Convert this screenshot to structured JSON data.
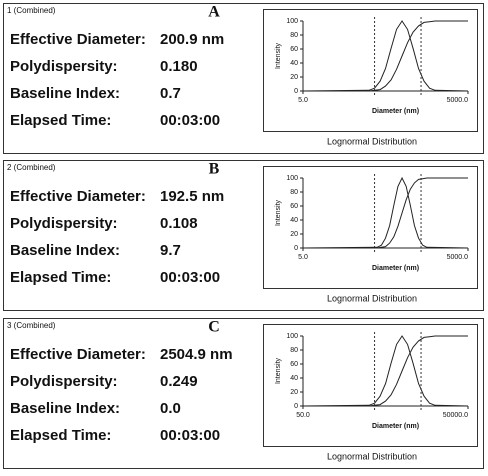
{
  "panels": [
    {
      "header": "1 (Combined)",
      "letter": "A",
      "rows": [
        {
          "label": "Effective Diameter:",
          "value": "200.9 nm"
        },
        {
          "label": "Polydispersity:",
          "value": "0.180"
        },
        {
          "label": "Baseline Index:",
          "value": "0.7"
        },
        {
          "label": "Elapsed Time:",
          "value": "00:03:00"
        }
      ]
    },
    {
      "header": "2 (Combined)",
      "letter": "B",
      "rows": [
        {
          "label": "Effective Diameter:",
          "value": "192.5 nm"
        },
        {
          "label": "Polydispersity:",
          "value": "0.108"
        },
        {
          "label": "Baseline Index:",
          "value": "9.7"
        },
        {
          "label": "Elapsed Time:",
          "value": "00:03:00"
        }
      ]
    },
    {
      "header": "3 (Combined)",
      "letter": "C",
      "rows": [
        {
          "label": "Effective Diameter:",
          "value": "2504.9 nm"
        },
        {
          "label": "Polydispersity:",
          "value": "0.249"
        },
        {
          "label": "Baseline Index:",
          "value": "0.0"
        },
        {
          "label": "Elapsed Time:",
          "value": "00:03:00"
        }
      ]
    }
  ],
  "chart_data": [
    {
      "type": "line",
      "caption": "Lognormal Distribution",
      "xlabel": "Diameter (nm)",
      "ylabel": "Intensity",
      "xscale": "log",
      "xlim": [
        5,
        5000
      ],
      "xticks": [
        {
          "value": 5,
          "label": "5.0"
        },
        {
          "value": 5000,
          "label": "5000.0"
        }
      ],
      "ylim": [
        0,
        100
      ],
      "yticks": [
        0,
        20,
        40,
        60,
        80,
        100
      ],
      "vlines": [
        100,
        700
      ],
      "x": [
        5,
        79,
        100,
        126,
        158,
        200,
        251,
        316,
        398,
        501,
        631,
        794,
        1000,
        1259,
        5000
      ],
      "series": [
        {
          "color": "#222222",
          "values": [
            0,
            1,
            4,
            14,
            32,
            61,
            88,
            100,
            88,
            61,
            32,
            14,
            4,
            1,
            0
          ]
        },
        {
          "color": "#222222",
          "values": [
            0,
            0,
            1,
            2,
            7,
            16,
            31,
            50,
            69,
            84,
            93,
            98,
            99,
            100,
            100
          ]
        }
      ]
    },
    {
      "type": "line",
      "caption": "Lognormal Distribution",
      "xlabel": "Diameter (nm)",
      "ylabel": "Intensity",
      "xscale": "log",
      "xlim": [
        5,
        5000
      ],
      "xticks": [
        {
          "value": 5,
          "label": "5.0"
        },
        {
          "value": 5000,
          "label": "5000.0"
        }
      ],
      "ylim": [
        0,
        100
      ],
      "yticks": [
        0,
        20,
        40,
        60,
        80,
        100
      ],
      "vlines": [
        100,
        700
      ],
      "x": [
        5,
        112,
        133,
        158,
        188,
        224,
        266,
        316,
        376,
        447,
        531,
        631,
        750,
        891,
        5000
      ],
      "series": [
        {
          "color": "#222222",
          "values": [
            0,
            1,
            4,
            14,
            32,
            61,
            88,
            100,
            88,
            61,
            32,
            14,
            4,
            1,
            0
          ]
        },
        {
          "color": "#222222",
          "values": [
            0,
            0,
            1,
            2,
            7,
            16,
            31,
            50,
            69,
            84,
            93,
            98,
            99,
            100,
            100
          ]
        }
      ]
    },
    {
      "type": "line",
      "caption": "Lognormal Distribution",
      "xlabel": "Diameter (nm)",
      "ylabel": "Intensity",
      "xscale": "log",
      "xlim": [
        50,
        50000
      ],
      "xticks": [
        {
          "value": 50,
          "label": "50.0"
        },
        {
          "value": 50000,
          "label": "50000.0"
        }
      ],
      "ylim": [
        0,
        100
      ],
      "yticks": [
        0,
        20,
        40,
        60,
        80,
        100
      ],
      "vlines": [
        1000,
        7000
      ],
      "x": [
        50,
        794,
        1000,
        1259,
        1585,
        1995,
        2512,
        3162,
        3981,
        5012,
        6310,
        7943,
        10000,
        12589,
        50000
      ],
      "series": [
        {
          "color": "#222222",
          "values": [
            0,
            1,
            4,
            14,
            32,
            61,
            88,
            100,
            88,
            61,
            32,
            14,
            4,
            1,
            0
          ]
        },
        {
          "color": "#222222",
          "values": [
            0,
            0,
            1,
            2,
            7,
            16,
            31,
            50,
            69,
            84,
            93,
            98,
            99,
            100,
            100
          ]
        }
      ]
    }
  ]
}
